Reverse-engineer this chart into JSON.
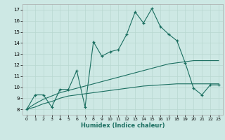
{
  "xlabel": "Humidex (Indice chaleur)",
  "background_color": "#cde8e4",
  "grid_color": "#b8d8d0",
  "line_color": "#1a6e60",
  "xlim": [
    -0.5,
    23.5
  ],
  "ylim": [
    7.5,
    17.5
  ],
  "xticks": [
    0,
    1,
    2,
    3,
    4,
    5,
    6,
    7,
    8,
    9,
    10,
    11,
    12,
    13,
    14,
    15,
    16,
    17,
    18,
    19,
    20,
    21,
    22,
    23
  ],
  "yticks": [
    8,
    9,
    10,
    11,
    12,
    13,
    14,
    15,
    16,
    17
  ],
  "line1_x": [
    0,
    1,
    2,
    3,
    4,
    5,
    6,
    7,
    8,
    9,
    10,
    11,
    12,
    13,
    14,
    15,
    16,
    17,
    18,
    19,
    20,
    21,
    22,
    23
  ],
  "line1_y": [
    8.0,
    9.3,
    9.3,
    8.2,
    9.8,
    9.8,
    11.5,
    8.2,
    14.1,
    12.8,
    13.2,
    13.4,
    14.8,
    16.8,
    15.8,
    17.1,
    15.5,
    14.8,
    14.2,
    12.2,
    9.9,
    9.3,
    10.2,
    10.2
  ],
  "line2_x": [
    0,
    1,
    2,
    3,
    4,
    5,
    6,
    7,
    8,
    9,
    10,
    11,
    12,
    13,
    14,
    15,
    16,
    17,
    18,
    19,
    20,
    21,
    22,
    23
  ],
  "line2_y": [
    8.0,
    8.5,
    8.9,
    9.2,
    9.5,
    9.7,
    9.9,
    10.1,
    10.3,
    10.5,
    10.7,
    10.9,
    11.1,
    11.3,
    11.5,
    11.7,
    11.9,
    12.1,
    12.2,
    12.3,
    12.4,
    12.4,
    12.4,
    12.4
  ],
  "line3_x": [
    0,
    1,
    2,
    3,
    4,
    5,
    6,
    7,
    8,
    9,
    10,
    11,
    12,
    13,
    14,
    15,
    16,
    17,
    18,
    19,
    20,
    21,
    22,
    23
  ],
  "line3_y": [
    8.0,
    8.2,
    8.5,
    8.7,
    9.0,
    9.2,
    9.3,
    9.4,
    9.5,
    9.6,
    9.7,
    9.8,
    9.9,
    10.0,
    10.1,
    10.15,
    10.2,
    10.25,
    10.3,
    10.3,
    10.3,
    10.3,
    10.3,
    10.3
  ]
}
